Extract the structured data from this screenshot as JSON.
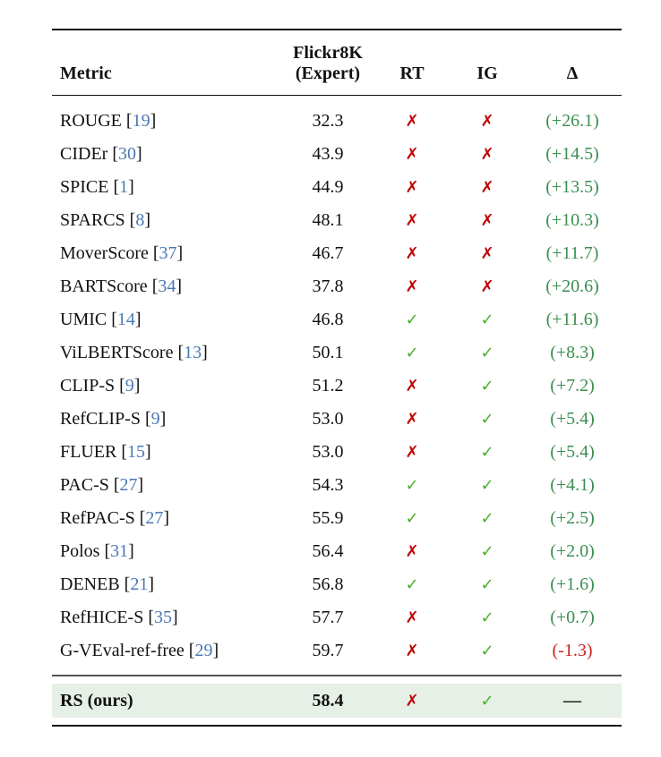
{
  "header": {
    "metric": "Metric",
    "score_line1": "Flickr8K",
    "score_line2": "(Expert)",
    "rt": "RT",
    "ig": "IG",
    "delta": "Δ"
  },
  "rows": [
    {
      "name": "ROUGE ",
      "cite": "19",
      "score": "32.3",
      "rt": "✗",
      "ig": "✗",
      "delta": "(+26.1)"
    },
    {
      "name": "CIDEr ",
      "cite": "30",
      "score": "43.9",
      "rt": "✗",
      "ig": "✗",
      "delta": "(+14.5)"
    },
    {
      "name": "SPICE ",
      "cite": "1",
      "score": "44.9",
      "rt": "✗",
      "ig": "✗",
      "delta": "(+13.5)"
    },
    {
      "name": "SPARCS ",
      "cite": "8",
      "score": "48.1",
      "rt": "✗",
      "ig": "✗",
      "delta": "(+10.3)"
    },
    {
      "name": "MoverScore ",
      "cite": "37",
      "score": "46.7",
      "rt": "✗",
      "ig": "✗",
      "delta": "(+11.7)"
    },
    {
      "name": "BARTScore ",
      "cite": "34",
      "score": "37.8",
      "rt": "✗",
      "ig": "✗",
      "delta": "(+20.6)"
    },
    {
      "name": "UMIC ",
      "cite": "14",
      "score": "46.8",
      "rt": "✓",
      "ig": "✓",
      "delta": "(+11.6)"
    },
    {
      "name": "ViLBERTScore ",
      "cite": "13",
      "score": "50.1",
      "rt": "✓",
      "ig": "✓",
      "delta": "(+8.3)"
    },
    {
      "name": "CLIP-S ",
      "cite": "9",
      "score": "51.2",
      "rt": "✗",
      "ig": "✓",
      "delta": "(+7.2)"
    },
    {
      "name": "RefCLIP-S ",
      "cite": "9",
      "score": "53.0",
      "rt": "✗",
      "ig": "✓",
      "delta": "(+5.4)"
    },
    {
      "name": "FLUER ",
      "cite": "15",
      "score": "53.0",
      "rt": "✗",
      "ig": "✓",
      "delta": "(+5.4)"
    },
    {
      "name": "PAC-S ",
      "cite": "27",
      "score": "54.3",
      "rt": "✓",
      "ig": "✓",
      "delta": "(+4.1)"
    },
    {
      "name": "RefPAC-S ",
      "cite": "27",
      "score": "55.9",
      "rt": "✓",
      "ig": "✓",
      "delta": "(+2.5)"
    },
    {
      "name": "Polos ",
      "cite": "31",
      "score": "56.4",
      "rt": "✗",
      "ig": "✓",
      "delta": "(+2.0)"
    },
    {
      "name": "DENEB ",
      "cite": "21",
      "score": "56.8",
      "rt": "✓",
      "ig": "✓",
      "delta": "(+1.6)"
    },
    {
      "name": "RefHICE-S ",
      "cite": "35",
      "score": "57.7",
      "rt": "✗",
      "ig": "✓",
      "delta": "(+0.7)"
    },
    {
      "name": "G-VEval-ref-free ",
      "cite": "29",
      "score": "59.7",
      "rt": "✗",
      "ig": "✓",
      "delta": "(-1.3)"
    }
  ],
  "ours": {
    "name": "RS (ours)",
    "score": "58.4",
    "rt": "✗",
    "ig": "✓",
    "delta": "—"
  },
  "colors": {
    "cross": "#c00000",
    "check": "#4bae2a",
    "positive": "#3a8f4e",
    "negative": "#cc2222",
    "citation": "#4a78b5",
    "highlight": "#e6f0e6"
  }
}
